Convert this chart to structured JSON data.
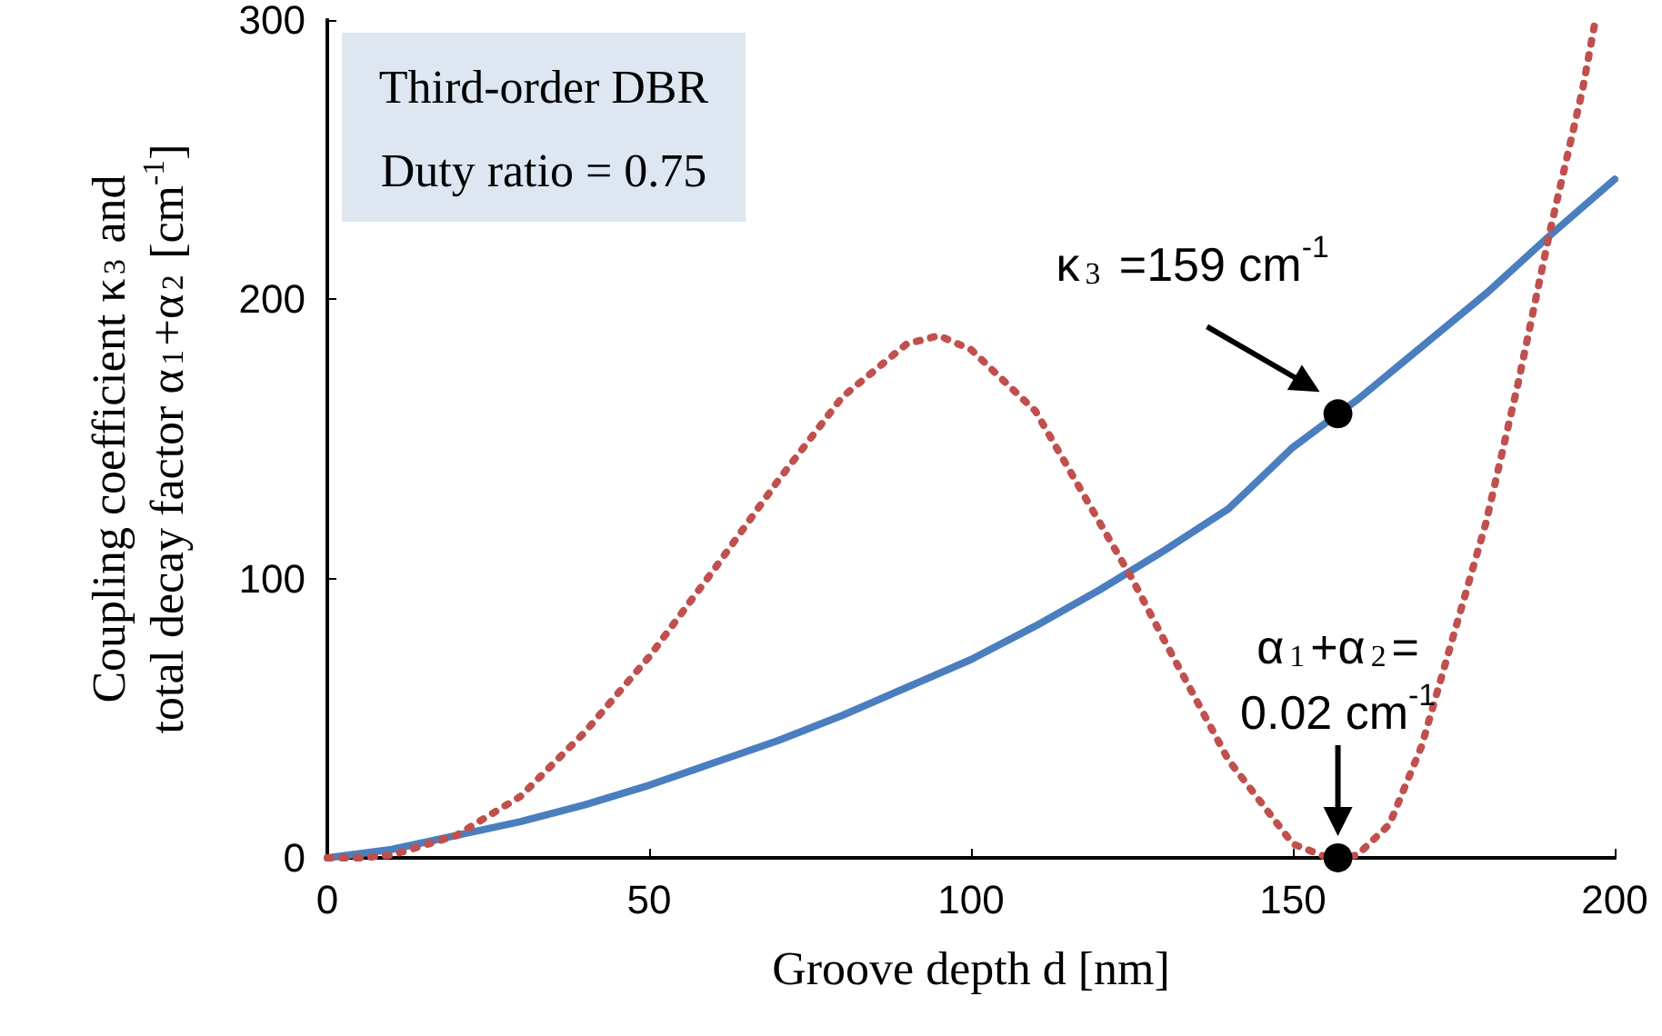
{
  "chart_data": {
    "type": "line",
    "title": "Third-order DBR",
    "subtitle": "Duty ratio = 0.75",
    "xlabel": "Groove depth d [nm]",
    "ylabel": "Coupling coefficient κ$_{3}$ and\ntotal decay factor α$_{1}$+α$_{2}$ [cm$^{-1}$]",
    "xlim": [
      0,
      200
    ],
    "xticks": [
      0,
      50,
      100,
      150,
      200
    ],
    "ylim": [
      0,
      300
    ],
    "yticks": [
      0,
      100,
      200,
      300
    ],
    "grid": false,
    "marker": "none",
    "series": [
      {
        "color": "#4a7ebf",
        "line_style": "solid",
        "x": [
          0,
          10,
          20,
          30,
          40,
          50,
          60,
          70,
          80,
          90,
          100,
          110,
          120,
          130,
          140,
          145,
          150,
          157,
          160,
          170,
          180,
          190,
          200
        ],
        "values": [
          0,
          3,
          8,
          13,
          19,
          26,
          34,
          42,
          51,
          61,
          71,
          83,
          96,
          110,
          125,
          136,
          147,
          159,
          164,
          183,
          202,
          223,
          243
        ]
      },
      {
        "color": "#c0504d",
        "line_style": "dotted",
        "x": [
          0,
          5,
          10,
          20,
          30,
          40,
          50,
          60,
          70,
          80,
          90,
          95,
          100,
          110,
          120,
          125,
          130,
          140,
          150,
          155,
          157,
          160,
          165,
          170,
          180,
          185,
          190,
          195,
          197
        ],
        "values": [
          0,
          0,
          1,
          8,
          22,
          45,
          72,
          103,
          135,
          165,
          184,
          187,
          182,
          160,
          120,
          100,
          78,
          35,
          5,
          0.5,
          0,
          1,
          12,
          40,
          120,
          170,
          225,
          275,
          300
        ]
      }
    ],
    "annotations": [
      {
        "text": "κ$_{3}$ =159 cm$^{-1}$",
        "x": 157,
        "y": 159
      },
      {
        "text": "α$_{1}$+α$_{2}$=\n0.02 cm$^{-1}$",
        "x": 157,
        "y": 0.02
      }
    ]
  }
}
